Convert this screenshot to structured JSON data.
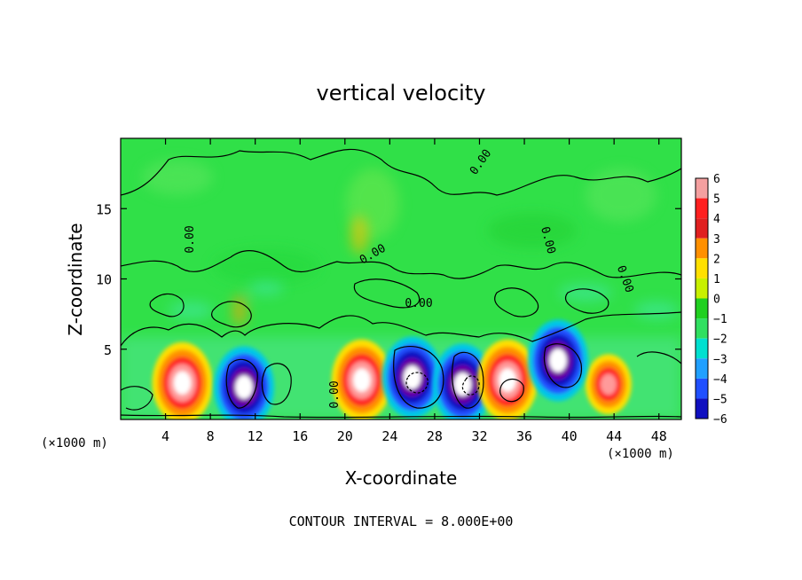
{
  "chart_data": {
    "type": "heatmap",
    "title": "vertical velocity",
    "xlabel": "X-coordinate",
    "ylabel": "Z-coordinate",
    "x_unit_left": "(×1000 m)",
    "x_unit_right": "(×1000 m)",
    "xlim": [
      0,
      50
    ],
    "ylim": [
      0,
      20
    ],
    "x_ticks": [
      4,
      8,
      12,
      16,
      20,
      24,
      28,
      32,
      36,
      40,
      44,
      48
    ],
    "y_ticks": [
      5,
      10,
      15
    ],
    "colorbar": {
      "levels": [
        6,
        5,
        4,
        3,
        2,
        1,
        0,
        -1,
        -2,
        -3,
        -4,
        -5,
        -6
      ],
      "colors": [
        "#f4a0a0",
        "#ff2020",
        "#e02020",
        "#ff9000",
        "#ffe000",
        "#c8f000",
        "#20d020",
        "#30e060",
        "#00e0d0",
        "#20a0ff",
        "#2050ff",
        "#1010c0",
        "#7000a0"
      ]
    },
    "contour_labels": [
      "0.00",
      "0.00",
      "0.00",
      "0.00",
      "0.00",
      "0.00",
      "0.00"
    ],
    "cells": [
      {
        "x": 5.5,
        "z": 2.6,
        "value": 7
      },
      {
        "x": 11.0,
        "z": 2.3,
        "value": -7
      },
      {
        "x": 21.5,
        "z": 2.8,
        "value": 7
      },
      {
        "x": 26.0,
        "z": 3.0,
        "value": -7
      },
      {
        "x": 30.5,
        "z": 2.5,
        "value": -7
      },
      {
        "x": 34.5,
        "z": 2.8,
        "value": 7
      },
      {
        "x": 43.5,
        "z": 2.5,
        "value": 4
      },
      {
        "x": 39.0,
        "z": 4.2,
        "value": -6
      }
    ],
    "footer": "CONTOUR INTERVAL = 8.000E+00"
  }
}
